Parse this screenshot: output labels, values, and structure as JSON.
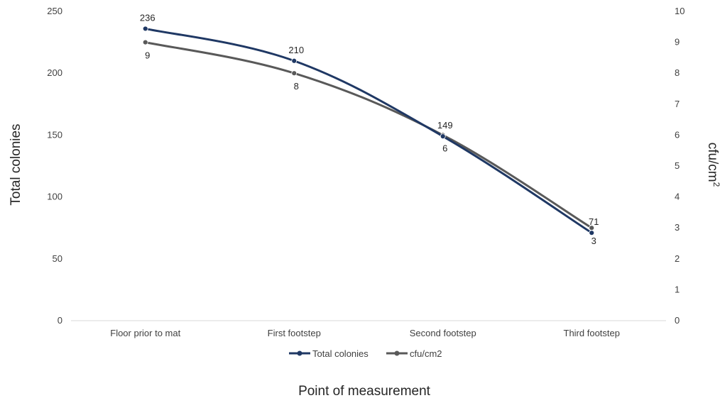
{
  "chart_data": {
    "type": "line",
    "categories": [
      "Floor prior to mat",
      "First footstep",
      "Second footstep",
      "Third footstep"
    ],
    "series": [
      {
        "name": "Total colonies",
        "axis": "left",
        "values": [
          236,
          210,
          149,
          71
        ],
        "color": "#1f3864"
      },
      {
        "name": "cfu/cm2",
        "axis": "right",
        "values": [
          9,
          8,
          6,
          3
        ],
        "color": "#595959"
      }
    ],
    "xlabel": "Point of measurement",
    "ylabel": "Total colonies",
    "y2label": {
      "base": "cfu/cm",
      "sup": "2"
    },
    "ylim": [
      0,
      250
    ],
    "y2lim": [
      0,
      10
    ],
    "yticks": [
      "0",
      "50",
      "100",
      "150",
      "200",
      "250"
    ],
    "y2ticks": [
      "0",
      "1",
      "2",
      "3",
      "4",
      "5",
      "6",
      "7",
      "8",
      "9",
      "10"
    ],
    "grid": false,
    "legend": "bottom",
    "legend_items": [
      "Total colonies",
      "cfu/cm2"
    ]
  }
}
